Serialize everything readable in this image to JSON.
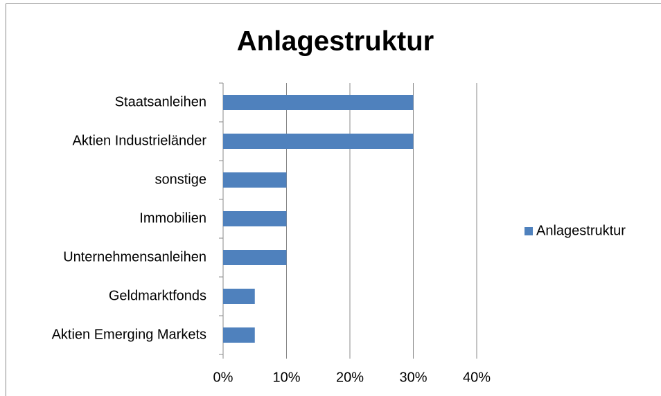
{
  "chart_data": {
    "type": "bar",
    "orientation": "horizontal",
    "title": "Anlagestruktur",
    "categories": [
      "Staatsanleihen",
      "Aktien Industrieländer",
      "sonstige",
      "Immobilien",
      "Unternehmensanleihen",
      "Geldmarktfonds",
      "Aktien Emerging Markets"
    ],
    "series": [
      {
        "name": "Anlagestruktur",
        "color": "#4f81bd",
        "values": [
          30,
          30,
          10,
          10,
          10,
          5,
          5
        ]
      }
    ],
    "xlim": [
      0,
      40
    ],
    "xticks": [
      {
        "value": 0,
        "label": "0%"
      },
      {
        "value": 10,
        "label": "10%"
      },
      {
        "value": 20,
        "label": "20%"
      },
      {
        "value": 30,
        "label": "30%"
      },
      {
        "value": 40,
        "label": "40%"
      }
    ],
    "grid": true,
    "legend": "right"
  }
}
